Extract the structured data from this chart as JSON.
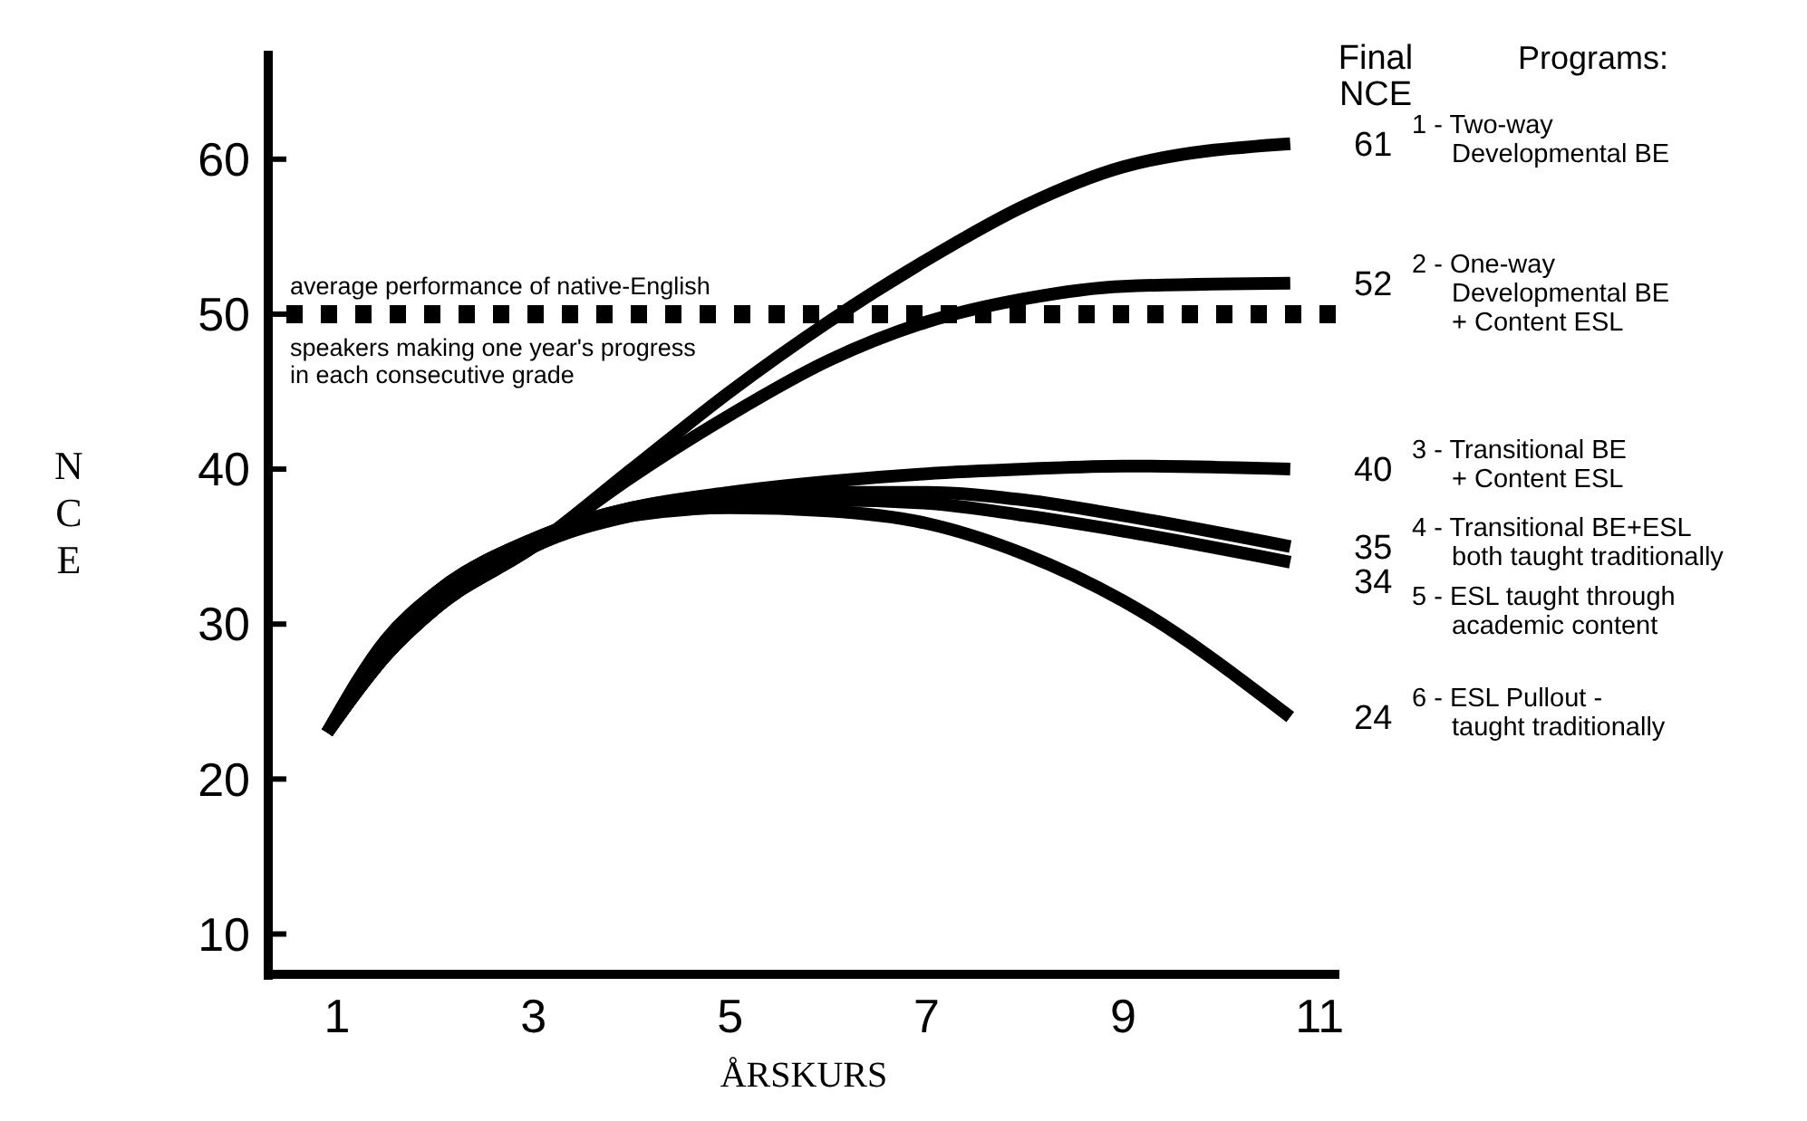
{
  "chart_data": {
    "type": "line",
    "xlabel": "ÅRSKURS",
    "ylabel": "NCE",
    "legend_title": "Programs:",
    "annotations": [
      "Final NCE"
    ],
    "x": [
      0.9,
      1.5,
      2,
      3,
      4,
      5,
      6,
      7,
      8,
      9,
      10.7
    ],
    "series": [
      {
        "name": "1 - Two-way\nDevelopmental BE",
        "color": "#000000",
        "values": [
          23,
          28,
          31,
          35,
          40,
          45,
          49.5,
          53.5,
          57,
          59.5,
          61
        ],
        "value_labels": [
          null,
          null,
          null,
          null,
          null,
          null,
          null,
          null,
          null,
          null,
          "61"
        ]
      },
      {
        "name": "2 - One-way\nDevelopmental BE\n+ Content ESL",
        "color": "#000000",
        "values": [
          23,
          28,
          31,
          35,
          39.5,
          43.5,
          47,
          49.5,
          51,
          51.8,
          52
        ],
        "value_labels": [
          null,
          null,
          null,
          null,
          null,
          null,
          null,
          null,
          null,
          null,
          "52"
        ]
      },
      {
        "name": "3 - Transitional BE\n+ Content ESL",
        "color": "#000000",
        "values": [
          23,
          29,
          32,
          35.5,
          37.5,
          38.5,
          39.2,
          39.7,
          40,
          40.2,
          40
        ],
        "value_labels": [
          null,
          null,
          null,
          null,
          null,
          null,
          null,
          null,
          null,
          null,
          "40"
        ]
      },
      {
        "name": "4 - Transitional BE+ESL\nboth taught traditionally",
        "color": "#000000",
        "values": [
          23,
          29,
          32,
          35.5,
          37.5,
          38.2,
          38.5,
          38.5,
          38,
          37,
          35
        ],
        "value_labels": [
          null,
          null,
          null,
          null,
          null,
          null,
          null,
          null,
          null,
          null,
          "35"
        ]
      },
      {
        "name": "5 - ESL taught through\nacademic content",
        "color": "#000000",
        "values": [
          23,
          28,
          31,
          35,
          37,
          37.8,
          38,
          37.8,
          37,
          36,
          34
        ],
        "value_labels": [
          null,
          null,
          null,
          null,
          null,
          null,
          null,
          null,
          null,
          null,
          "34"
        ]
      },
      {
        "name": "6 - ESL Pullout -\ntaught traditionally",
        "color": "#000000",
        "values": [
          23,
          28,
          31,
          35,
          37,
          37.5,
          37.3,
          36.5,
          34.5,
          31.5,
          24
        ],
        "value_labels": [
          null,
          null,
          null,
          null,
          null,
          null,
          null,
          null,
          null,
          null,
          "24"
        ]
      }
    ],
    "xlim": [
      0.3,
      11.2
    ],
    "xticks": [
      1,
      3,
      5,
      7,
      9,
      11
    ],
    "ylim": [
      7.4,
      67
    ],
    "yticks": [
      10,
      20,
      30,
      40,
      50,
      60
    ],
    "ref_lines": [
      {
        "axis": "y",
        "value": 50,
        "label": "average performance of native-English\nspeakers making one year's progress\nin each consecutive grade",
        "color": "#000000",
        "line_style": "dashed"
      }
    ],
    "grid": false,
    "legend": "right",
    "marker": "none",
    "line_style": "solid"
  }
}
